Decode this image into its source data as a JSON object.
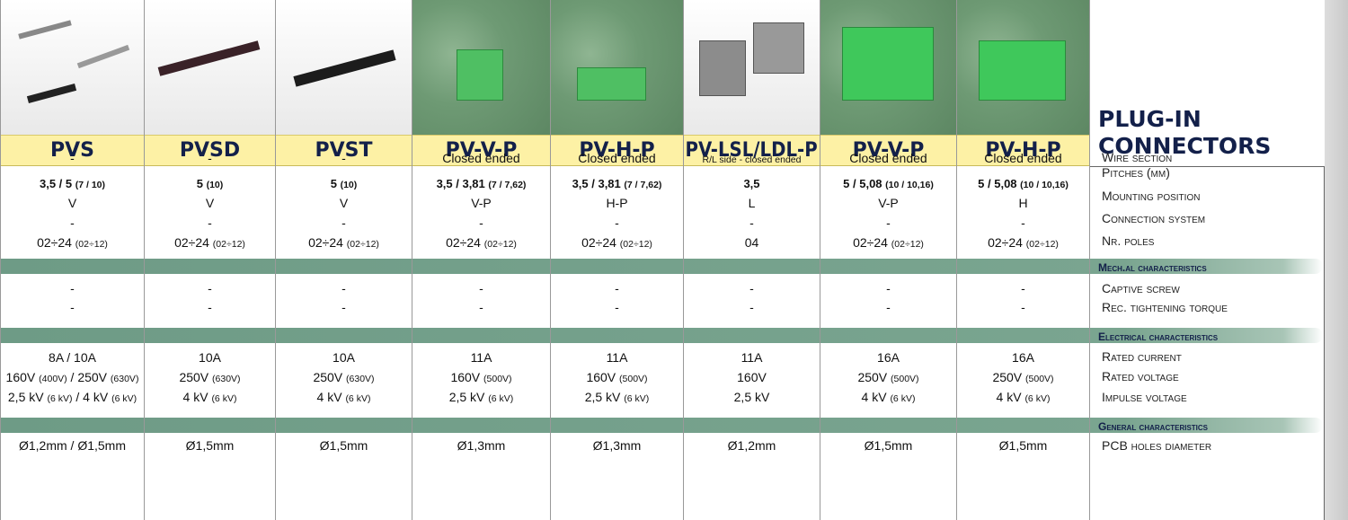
{
  "title": {
    "line1": "PLUG-IN",
    "line2": "CONNECTORS"
  },
  "row_labels": [
    "Wire section",
    "Pitches (mm)",
    "Mounting position",
    "Connection system",
    "Nr. poles",
    "Captive screw",
    "Rec. tightening torque",
    "Rated current",
    "Rated voltage",
    "Impulse voltage",
    "PCB holes diameter"
  ],
  "sections": [
    "Mech.al characteristics",
    "Electrical characteristics",
    "General characteristics"
  ],
  "columns": [
    {
      "name": "PVS",
      "cells": [
        "-",
        [
          {
            "text": "3,5 / 5 ",
            "bold": true
          },
          {
            "text": "(7 / 10)",
            "bold": true,
            "small": true
          }
        ],
        "V",
        "-",
        [
          {
            "text": "02÷24 "
          },
          {
            "text": "(02÷12)",
            "small": true
          }
        ],
        "-",
        "-",
        "8A / 10A",
        [
          {
            "text": "160V "
          },
          {
            "text": "(400V)",
            "small": true
          },
          {
            "text": " / 250V "
          },
          {
            "text": "(630V)",
            "small": true
          }
        ],
        [
          {
            "text": "2,5 kV "
          },
          {
            "text": "(6 kV)",
            "small": true
          },
          {
            "text": " / 4 kV "
          },
          {
            "text": "(6 kV)",
            "small": true
          }
        ],
        "Ø1,2mm / Ø1,5mm"
      ]
    },
    {
      "name": "PVSD",
      "cells": [
        "-",
        [
          {
            "text": "5 ",
            "bold": true
          },
          {
            "text": "(10)",
            "bold": true,
            "small": true
          }
        ],
        "V",
        "-",
        [
          {
            "text": "02÷24 "
          },
          {
            "text": "(02÷12)",
            "small": true
          }
        ],
        "-",
        "-",
        "10A",
        [
          {
            "text": "250V "
          },
          {
            "text": "(630V)",
            "small": true
          }
        ],
        [
          {
            "text": "4 kV "
          },
          {
            "text": "(6 kV)",
            "small": true
          }
        ],
        "Ø1,5mm"
      ]
    },
    {
      "name": "PVST",
      "cells": [
        "-",
        [
          {
            "text": "5 ",
            "bold": true
          },
          {
            "text": "(10)",
            "bold": true,
            "small": true
          }
        ],
        "V",
        "-",
        [
          {
            "text": "02÷24 "
          },
          {
            "text": "(02÷12)",
            "small": true
          }
        ],
        "-",
        "-",
        "10A",
        [
          {
            "text": "250V "
          },
          {
            "text": "(630V)",
            "small": true
          }
        ],
        [
          {
            "text": "4 kV "
          },
          {
            "text": "(6 kV)",
            "small": true
          }
        ],
        "Ø1,5mm"
      ]
    },
    {
      "name": "PV-V-P",
      "cells": [
        "Closed ended",
        [
          {
            "text": "3,5 / 3,81 ",
            "bold": true
          },
          {
            "text": "(7 / 7,62)",
            "bold": true,
            "small": true
          }
        ],
        "V-P",
        "-",
        [
          {
            "text": "02÷24 "
          },
          {
            "text": "(02÷12)",
            "small": true
          }
        ],
        "-",
        "-",
        "11A",
        [
          {
            "text": "160V "
          },
          {
            "text": "(500V)",
            "small": true
          }
        ],
        [
          {
            "text": "2,5 kV "
          },
          {
            "text": "(6 kV)",
            "small": true
          }
        ],
        "Ø1,3mm"
      ]
    },
    {
      "name": "PV-H-P",
      "cells": [
        "Closed ended",
        [
          {
            "text": "3,5 / 3,81 ",
            "bold": true
          },
          {
            "text": "(7 / 7,62)",
            "bold": true,
            "small": true
          }
        ],
        "H-P",
        "-",
        [
          {
            "text": "02÷24 "
          },
          {
            "text": "(02÷12)",
            "small": true
          }
        ],
        "-",
        "-",
        "11A",
        [
          {
            "text": "160V "
          },
          {
            "text": "(500V)",
            "small": true
          }
        ],
        [
          {
            "text": "2,5 kV "
          },
          {
            "text": "(6 kV)",
            "small": true
          }
        ],
        "Ø1,3mm"
      ]
    },
    {
      "name": "PV-LSL/LDL-P",
      "cells": [
        [
          {
            "text": "R/L side - closed ended",
            "small": true
          }
        ],
        [
          {
            "text": "3,5",
            "bold": true
          }
        ],
        "L",
        "-",
        "04",
        "-",
        "-",
        "11A",
        "160V",
        "2,5 kV",
        "Ø1,2mm"
      ]
    },
    {
      "name": "PV-V-P",
      "cells": [
        "Closed ended",
        [
          {
            "text": "5 / 5,08 ",
            "bold": true
          },
          {
            "text": "(10 / 10,16)",
            "bold": true,
            "small": true
          }
        ],
        "V-P",
        "-",
        [
          {
            "text": "02÷24 "
          },
          {
            "text": "(02÷12)",
            "small": true
          }
        ],
        "-",
        "-",
        "16A",
        [
          {
            "text": "250V "
          },
          {
            "text": "(500V)",
            "small": true
          }
        ],
        [
          {
            "text": "4 kV "
          },
          {
            "text": "(6 kV)",
            "small": true
          }
        ],
        "Ø1,5mm"
      ]
    },
    {
      "name": "PV-H-P",
      "cells": [
        "Closed ended",
        [
          {
            "text": "5 / 5,08 ",
            "bold": true
          },
          {
            "text": "(10 / 10,16)",
            "bold": true,
            "small": true
          }
        ],
        "H",
        "-",
        [
          {
            "text": "02÷24 "
          },
          {
            "text": "(02÷12)",
            "small": true
          }
        ],
        "-",
        "-",
        "16A",
        [
          {
            "text": "250V "
          },
          {
            "text": "(500V)",
            "small": true
          }
        ],
        [
          {
            "text": "4 kV "
          },
          {
            "text": "(6 kV)",
            "small": true
          }
        ],
        "Ø1,5mm"
      ]
    }
  ]
}
